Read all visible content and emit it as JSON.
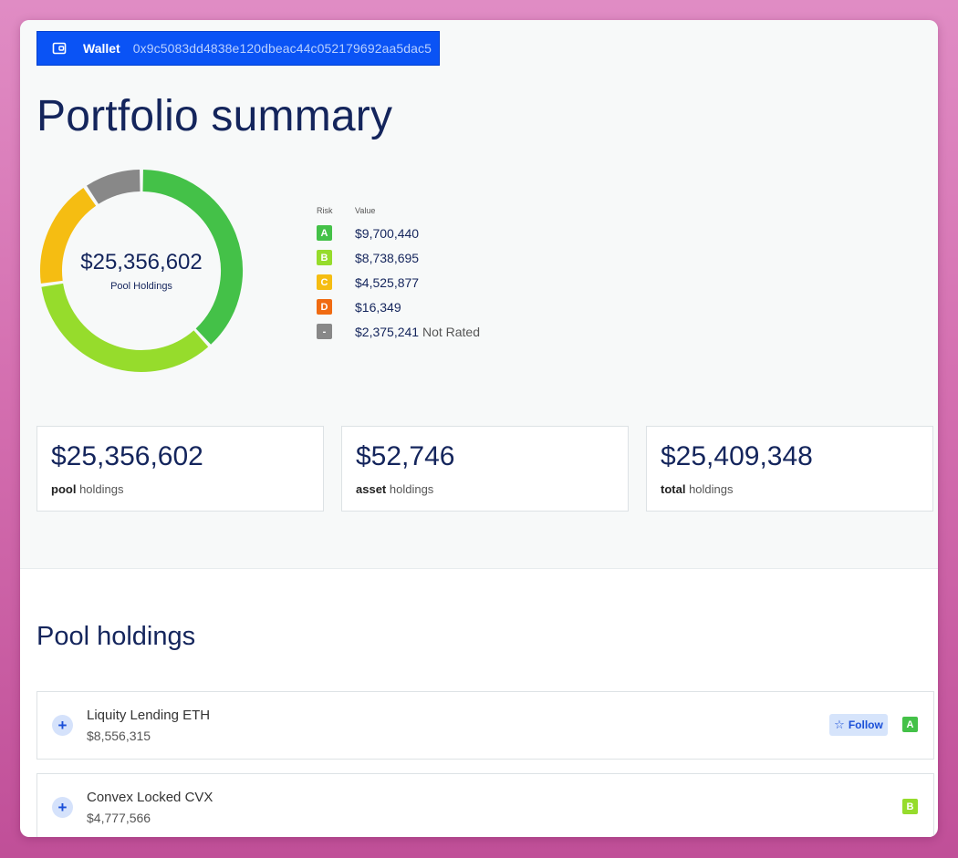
{
  "wallet": {
    "label": "Wallet",
    "address": "0x9c5083dd4838e120dbeac44c052179692aa5dac5",
    "icon": "wallet-icon"
  },
  "page_title": "Portfolio summary",
  "donut": {
    "total": "$25,356,602",
    "caption": "Pool Holdings"
  },
  "legend": {
    "risk_header": "Risk",
    "value_header": "Value",
    "items": [
      {
        "grade": "A",
        "value": "$9,700,440",
        "note": "",
        "color": "#44c148",
        "amount": 9700440
      },
      {
        "grade": "B",
        "value": "$8,738,695",
        "note": "",
        "color": "#96dc2c",
        "amount": 8738695
      },
      {
        "grade": "C",
        "value": "$4,525,877",
        "note": "",
        "color": "#f5bd12",
        "amount": 4525877
      },
      {
        "grade": "D",
        "value": "$16,349",
        "note": "",
        "color": "#f06b12",
        "amount": 16349
      },
      {
        "grade": "-",
        "value": "$2,375,241",
        "note": "Not Rated",
        "color": "#888888",
        "amount": 2375241
      }
    ]
  },
  "stats": [
    {
      "value": "$25,356,602",
      "bold": "pool",
      "rest": "holdings"
    },
    {
      "value": "$52,746",
      "bold": "asset",
      "rest": "holdings"
    },
    {
      "value": "$25,409,348",
      "bold": "total",
      "rest": "holdings"
    }
  ],
  "pool_holdings": {
    "title": "Pool holdings",
    "follow_label": "Follow",
    "rows": [
      {
        "name": "Liquity Lending ETH",
        "value": "$8,556,315",
        "grade": "A",
        "grade_color": "#44c148",
        "show_follow": true
      },
      {
        "name": "Convex Locked CVX",
        "value": "$4,777,566",
        "grade": "B",
        "grade_color": "#96dc2c",
        "show_follow": false
      }
    ]
  },
  "colors": {
    "accent": "#0a53f5",
    "title": "#14255c"
  }
}
